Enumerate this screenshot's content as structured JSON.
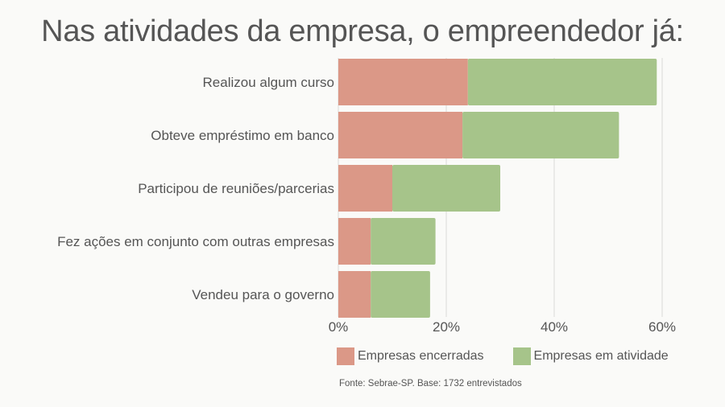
{
  "title": "Nas atividades da empresa, o empreendedor já:",
  "source": "Fonte: Sebrae-SP. Base: 1732 entrevistados",
  "colors": {
    "encerradas": "#db9887",
    "atividade": "#a6c48a",
    "grid": "#d9d9d9",
    "background": "#fafaf8"
  },
  "chart_data": {
    "type": "bar",
    "orientation": "horizontal",
    "stacked": true,
    "title": "Nas atividades da empresa, o empreendedor já:",
    "categories": [
      "Realizou algum curso",
      "Obteve empréstimo em banco",
      "Participou de reuniões/parcerias",
      "Fez ações em conjunto com outras empresas",
      "Vendeu para o governo"
    ],
    "series": [
      {
        "name": "Empresas encerradas",
        "values": [
          24,
          23,
          10,
          6,
          6
        ]
      },
      {
        "name": "Empresas em atividade",
        "values": [
          35,
          29,
          20,
          12,
          11
        ]
      }
    ],
    "xlim": [
      0,
      60
    ],
    "xticks": [
      0,
      20,
      40,
      60
    ],
    "tick_format": "percent",
    "grid": true,
    "legend_position": "bottom"
  }
}
